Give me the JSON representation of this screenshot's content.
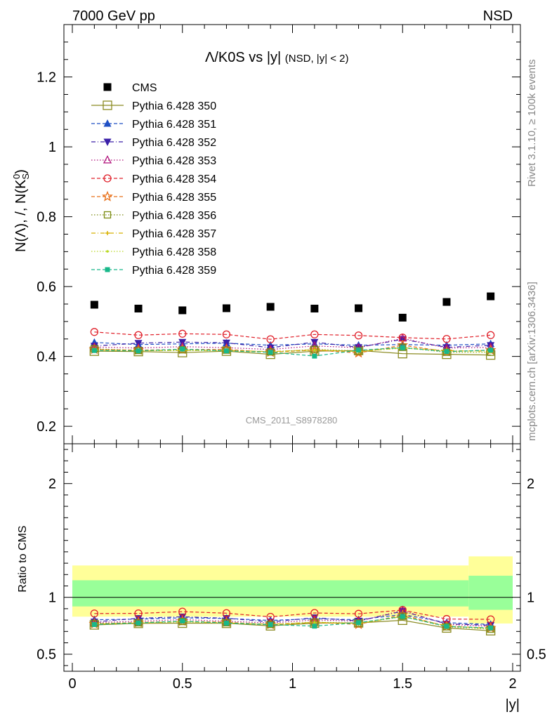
{
  "header": {
    "energy_label": "7000 GeV pp",
    "process_label": "NSD"
  },
  "side_labels": {
    "rivet": "Rivet 3.1.10, ≥ 100k events",
    "mcplots": "mcplots.cern.ch [arXiv:1306.3436]"
  },
  "watermark": "CMS_2011_S8978280",
  "chart_data": [
    {
      "type": "scatter",
      "title_main": "Λ/K0S vs |y|",
      "title_sub": "(NSD, |y| < 2)",
      "ylabel": "N(Λ), /, N(K",
      "ylabel_sup": "0",
      "ylabel_sub": "S",
      "ylabel_end": ")",
      "xlabel": "|y|",
      "xlim": [
        0,
        2
      ],
      "ylim": [
        0.15,
        1.35
      ],
      "yticks": [
        "0.2",
        "0.4",
        "0.6",
        "0.8",
        "1",
        "1.2"
      ],
      "x": [
        0.1,
        0.3,
        0.5,
        0.7,
        0.9,
        1.1,
        1.3,
        1.5,
        1.7,
        1.9
      ],
      "series": [
        {
          "name": "CMS",
          "color": "#000000",
          "marker": "square-filled",
          "line": "none",
          "values": [
            0.548,
            0.537,
            0.532,
            0.538,
            0.542,
            0.537,
            0.538,
            0.511,
            0.556,
            0.572
          ]
        },
        {
          "name": "Pythia 6.428 350",
          "color": "#8b8b22",
          "marker": "square-open-large",
          "line": "solid",
          "values": [
            0.415,
            0.414,
            0.411,
            0.415,
            0.406,
            0.415,
            0.417,
            0.408,
            0.406,
            0.404
          ]
        },
        {
          "name": "Pythia 6.428 351",
          "color": "#1f4fc4",
          "marker": "triangle-up-filled",
          "line": "dash",
          "values": [
            0.44,
            0.434,
            0.436,
            0.438,
            0.432,
            0.436,
            0.432,
            0.434,
            0.432,
            0.436
          ]
        },
        {
          "name": "Pythia 6.428 352",
          "color": "#3a1fa8",
          "marker": "triangle-down-filled",
          "line": "dashdot",
          "values": [
            0.43,
            0.438,
            0.441,
            0.439,
            0.425,
            0.441,
            0.426,
            0.449,
            0.426,
            0.432
          ]
        },
        {
          "name": "Pythia 6.428 353",
          "color": "#b0107a",
          "marker": "triangle-up-open",
          "line": "dot",
          "values": [
            0.427,
            0.424,
            0.428,
            0.425,
            0.42,
            0.43,
            0.425,
            0.452,
            0.424,
            0.426
          ]
        },
        {
          "name": "Pythia 6.428 354",
          "color": "#e0202a",
          "marker": "circle-open",
          "line": "dash",
          "values": [
            0.47,
            0.461,
            0.465,
            0.463,
            0.449,
            0.463,
            0.46,
            0.454,
            0.45,
            0.461
          ]
        },
        {
          "name": "Pythia 6.428 355",
          "color": "#e8701a",
          "marker": "star-open",
          "line": "dash",
          "values": [
            0.42,
            0.418,
            0.42,
            0.42,
            0.412,
            0.418,
            0.41,
            0.432,
            0.414,
            0.418
          ]
        },
        {
          "name": "Pythia 6.428 356",
          "color": "#7a8a10",
          "marker": "square-open",
          "line": "dot",
          "values": [
            0.422,
            0.417,
            0.419,
            0.418,
            0.413,
            0.42,
            0.416,
            0.426,
            0.412,
            0.412
          ]
        },
        {
          "name": "Pythia 6.428 357",
          "color": "#d8b000",
          "marker": "cross-small",
          "line": "dashdot",
          "values": [
            0.419,
            0.416,
            0.418,
            0.417,
            0.414,
            0.419,
            0.414,
            0.425,
            0.417,
            0.415
          ]
        },
        {
          "name": "Pythia 6.428 358",
          "color": "#b8d820",
          "marker": "dot-small",
          "line": "dot",
          "values": [
            0.418,
            0.416,
            0.417,
            0.416,
            0.412,
            0.418,
            0.414,
            0.424,
            0.414,
            0.412
          ]
        },
        {
          "name": "Pythia 6.428 359",
          "color": "#18b88a",
          "marker": "square-filled-small",
          "line": "dash",
          "values": [
            0.417,
            0.416,
            0.421,
            0.416,
            0.412,
            0.401,
            0.418,
            0.425,
            0.414,
            0.418
          ]
        }
      ]
    },
    {
      "type": "scatter",
      "ylabel": "Ratio to CMS",
      "xlabel": "|y|",
      "xlim": [
        0,
        2
      ],
      "ylim": [
        0.35,
        2.35
      ],
      "yticks": [
        "0.5",
        "1",
        "2"
      ],
      "xticks": [
        "0",
        "0.5",
        "1",
        "1.5",
        "2"
      ],
      "reference_line": 1,
      "bands": [
        {
          "x_range": [
            0,
            1.8
          ],
          "yellow": [
            0.83,
            1.28
          ],
          "green": [
            0.92,
            1.15
          ]
        },
        {
          "x_range": [
            1.8,
            2.0
          ],
          "yellow": [
            0.77,
            1.36
          ],
          "green": [
            0.89,
            1.19
          ]
        }
      ],
      "band_colors": {
        "outer": "#ffff99",
        "inner": "#99ff99"
      }
    }
  ]
}
